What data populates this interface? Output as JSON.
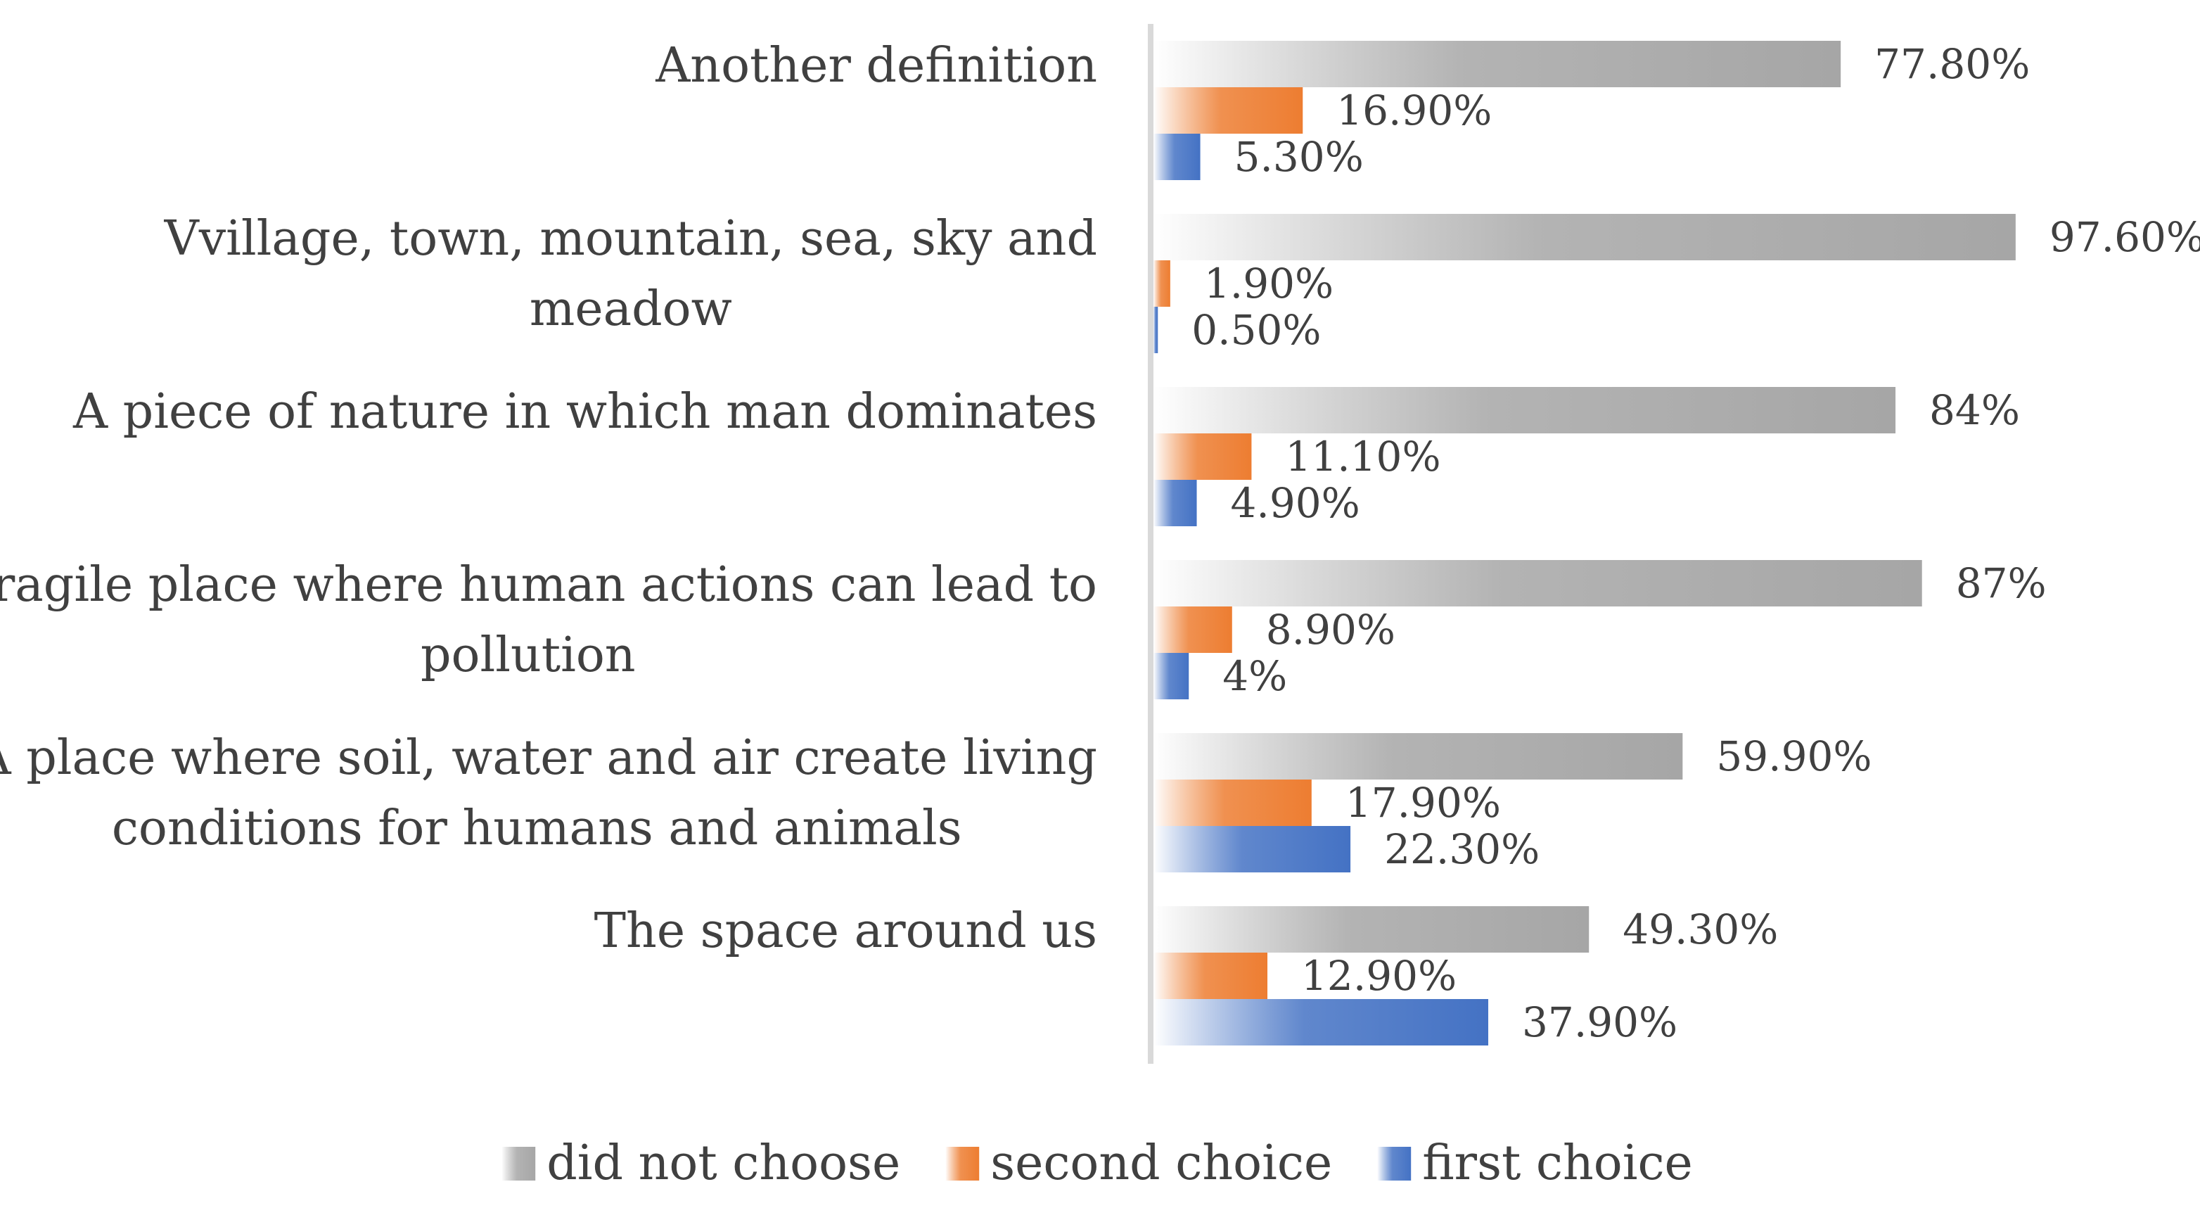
{
  "chart_data": {
    "type": "bar",
    "orientation": "horizontal",
    "title": "",
    "xlabel": "",
    "ylabel": "",
    "xlim": [
      0,
      100
    ],
    "grid": false,
    "legend_position": "bottom",
    "categories": [
      "Another definition",
      "Vvillage, town, mountain, sea, sky and meadow",
      "A piece of nature in which man dominates",
      "Fragile place where human actions can lead to pollution",
      "A place where soil, water and air create living conditions for humans and animals",
      "The space around us"
    ],
    "category_lines": [
      [
        "Another definition"
      ],
      [
        "Vvillage, town, mountain, sea, sky and",
        "meadow"
      ],
      [
        "A piece of nature in which man dominates"
      ],
      [
        "Fragile place where human actions can lead to",
        "pollution"
      ],
      [
        "A place where soil, water and air create living",
        "conditions for humans and animals"
      ],
      [
        "The space around us"
      ]
    ],
    "series": [
      {
        "name": "did not choose",
        "color": "#a6a6a6",
        "values": [
          77.8,
          97.6,
          84,
          87,
          59.9,
          49.3
        ],
        "labels": [
          "77.80%",
          "97.60%",
          "84%",
          "87%",
          "59.90%",
          "49.30%"
        ]
      },
      {
        "name": "second choice",
        "color": "#ed7d31",
        "values": [
          16.9,
          1.9,
          11.1,
          8.9,
          17.9,
          12.9
        ],
        "labels": [
          "16.90%",
          "1.90%",
          "11.10%",
          "8.90%",
          "17.90%",
          "12.90%"
        ]
      },
      {
        "name": "first choice",
        "color": "#4472c4",
        "values": [
          5.3,
          0.5,
          4.9,
          4,
          22.3,
          37.9
        ],
        "labels": [
          "5.30%",
          "0.50%",
          "4.90%",
          "4%",
          "22.30%",
          "37.90%"
        ]
      }
    ]
  }
}
